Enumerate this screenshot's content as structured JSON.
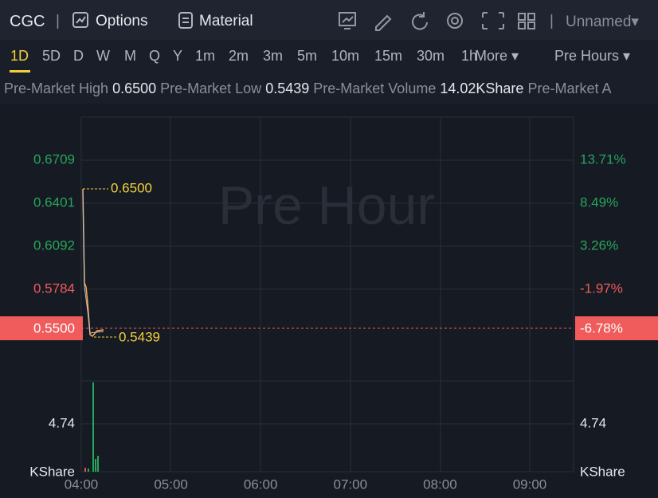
{
  "header": {
    "symbol": "CGC",
    "separator": "|",
    "options": "Options",
    "material": "Material",
    "layout": "Unnamed"
  },
  "tabs": {
    "items": [
      "1D",
      "5D",
      "D",
      "W",
      "M",
      "Q",
      "Y",
      "1m",
      "2m",
      "3m",
      "5m",
      "10m",
      "15m",
      "30m",
      "1h"
    ],
    "more": "More",
    "session": "Pre Hours"
  },
  "stats": {
    "high_label": "Pre-Market High",
    "high": "0.6500",
    "low_label": "Pre-Market Low",
    "low": "0.5439",
    "volume_label": "Pre-Market Volume",
    "volume": "14.02KShare",
    "avg_label": "Pre-Market A"
  },
  "chart": {
    "watermark": "Pre Hour",
    "left_axis": [
      "0.6709",
      "0.6401",
      "0.6092",
      "0.5784"
    ],
    "right_axis": [
      "13.71%",
      "8.49%",
      "3.26%",
      "-1.97%"
    ],
    "current_price": "0.5500",
    "current_change": "-6.78%",
    "volume_tick": "4.74",
    "volume_unit": "KShare",
    "high_marker": "0.6500",
    "low_marker": "0.5439",
    "x_axis": [
      "04:00",
      "05:00",
      "06:00",
      "07:00",
      "08:00",
      "09:00"
    ]
  }
}
